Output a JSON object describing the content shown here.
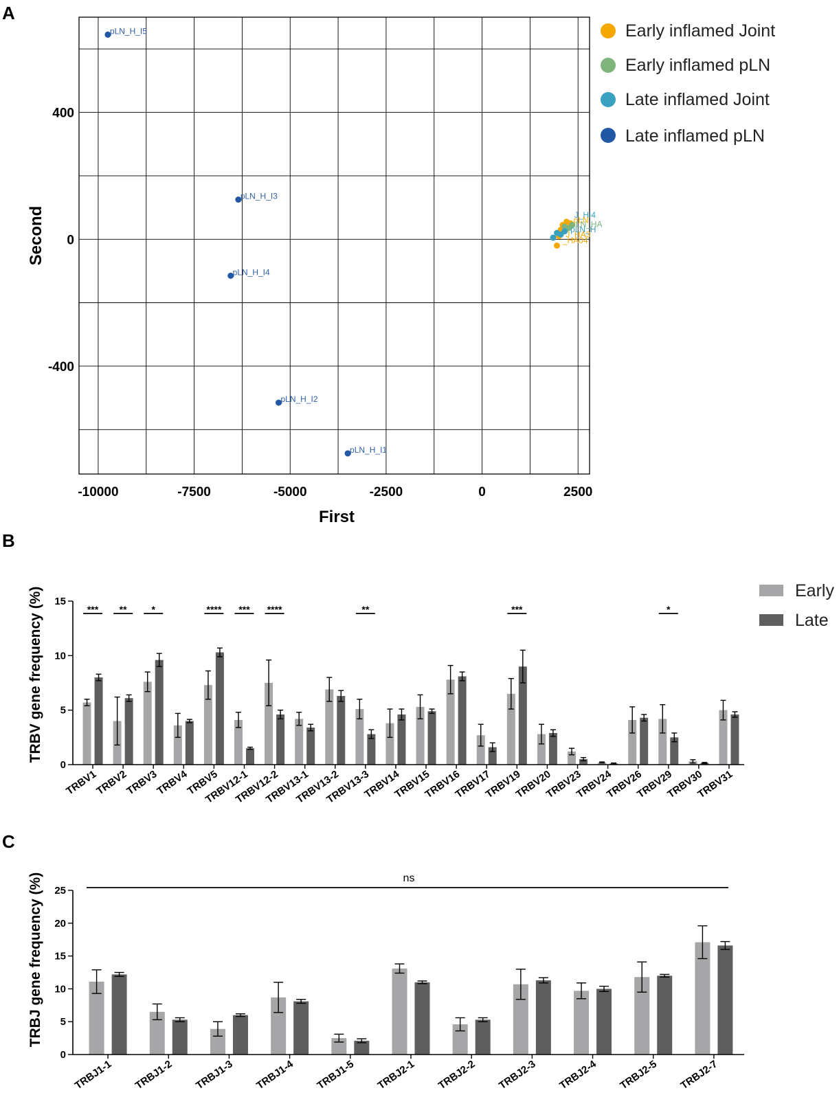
{
  "colors": {
    "early_joint": "#f5a800",
    "early_pln": "#7fb57d",
    "late_joint": "#3aa0c0",
    "late_pln": "#2257a3",
    "early_bar": "#a6a6a8",
    "late_bar": "#5e5e5e"
  },
  "chart_data": [
    {
      "panel": "A",
      "type": "scatter",
      "xlabel": "First",
      "ylabel": "Second",
      "xlim": [
        -10500,
        2800
      ],
      "ylim": [
        -740,
        700
      ],
      "xticks": [
        -10000,
        -7500,
        -5000,
        -2500,
        0,
        2500
      ],
      "xtick_labels": [
        "-10000",
        "-7500",
        "-5000",
        "-2500",
        "0",
        "2500"
      ],
      "yticks": [
        400,
        0,
        -400
      ],
      "ytick_labels": [
        "400",
        "0",
        "-400"
      ],
      "grid": true,
      "legend_position": "right",
      "legend": [
        {
          "name": "Early inflamed Joint",
          "color_key": "early_joint"
        },
        {
          "name": "Early inflamed pLN",
          "color_key": "early_pln"
        },
        {
          "name": "Late inflamed Joint",
          "color_key": "late_joint"
        },
        {
          "name": "Late inflamed pLN",
          "color_key": "late_pln"
        }
      ],
      "points": [
        {
          "label": "pLN_H_I5",
          "x": -9750,
          "y": 645,
          "group": "late_pln"
        },
        {
          "label": "pLN_H_I3",
          "x": -6350,
          "y": 125,
          "group": "late_pln"
        },
        {
          "label": "pLN_H_I4",
          "x": -6550,
          "y": -115,
          "group": "late_pln"
        },
        {
          "label": "pLN_H_I2",
          "x": -5300,
          "y": -515,
          "group": "late_pln"
        },
        {
          "label": "pLN_H_I1",
          "x": -3500,
          "y": -675,
          "group": "late_pln"
        }
      ],
      "cluster_points": [
        {
          "x": 1950,
          "y": -20,
          "group": "early_joint"
        },
        {
          "x": 2000,
          "y": 10,
          "group": "early_joint"
        },
        {
          "x": 2050,
          "y": 30,
          "group": "early_joint"
        },
        {
          "x": 2100,
          "y": 45,
          "group": "early_joint"
        },
        {
          "x": 2200,
          "y": 55,
          "group": "early_joint"
        },
        {
          "x": 2300,
          "y": 50,
          "group": "early_joint"
        },
        {
          "x": 2150,
          "y": 40,
          "group": "early_pln"
        },
        {
          "x": 2250,
          "y": 35,
          "group": "early_pln"
        },
        {
          "x": 2350,
          "y": 45,
          "group": "early_pln"
        },
        {
          "x": 1850,
          "y": 5,
          "group": "late_joint"
        },
        {
          "x": 1950,
          "y": 20,
          "group": "late_joint"
        },
        {
          "x": 2050,
          "y": 15,
          "group": "late_joint"
        },
        {
          "x": 2150,
          "y": 25,
          "group": "late_joint"
        }
      ],
      "cluster_labels": [
        {
          "text": "J_HI4",
          "x": 2400,
          "y": 68,
          "group": "late_joint"
        },
        {
          "text": "pLN",
          "x": 2380,
          "y": 52,
          "group": "early_joint"
        },
        {
          "text": "pLN_HA",
          "x": 2320,
          "y": 38,
          "group": "early_pln"
        },
        {
          "text": "pLN_H",
          "x": 2300,
          "y": 22,
          "group": "late_joint"
        },
        {
          "text": "J_HA3",
          "x": 2180,
          "y": 6,
          "group": "early_joint"
        },
        {
          "text": "_HA04",
          "x": 2100,
          "y": -12,
          "group": "early_joint"
        }
      ]
    },
    {
      "panel": "B",
      "type": "bar",
      "ylabel": "TRBV gene frequency (%)",
      "ylim": [
        0,
        15
      ],
      "yticks": [
        0,
        5,
        10,
        15
      ],
      "legend_position": "top-right",
      "categories": [
        "TRBV1",
        "TRBV2",
        "TRBV3",
        "TRBV4",
        "TRBV5",
        "TRBV12-1",
        "TRBV12-2",
        "TRBV13-1",
        "TRBV13-2",
        "TRBV13-3",
        "TRBV14",
        "TRBV15",
        "TRBV16",
        "TRBV17",
        "TRBV19",
        "TRBV20",
        "TRBV23",
        "TRBV24",
        "TRBV26",
        "TRBV29",
        "TRBV30",
        "TRBV31"
      ],
      "series": [
        {
          "name": "Early",
          "color_key": "early_bar",
          "values": [
            5.7,
            4.0,
            7.6,
            3.6,
            7.3,
            4.1,
            7.5,
            4.2,
            6.9,
            5.1,
            3.8,
            5.3,
            7.8,
            2.7,
            6.5,
            2.8,
            1.2,
            0.2,
            4.1,
            4.2,
            0.3,
            5.0
          ],
          "errors": [
            0.3,
            2.2,
            0.9,
            1.1,
            1.3,
            0.7,
            2.1,
            0.6,
            1.1,
            0.9,
            1.3,
            1.1,
            1.3,
            1.0,
            1.4,
            0.9,
            0.3,
            0.05,
            1.2,
            1.3,
            0.15,
            0.9
          ]
        },
        {
          "name": "Late",
          "color_key": "late_bar",
          "values": [
            8.0,
            6.1,
            9.6,
            4.0,
            10.3,
            1.5,
            4.6,
            3.4,
            6.3,
            2.8,
            4.6,
            4.9,
            8.1,
            1.6,
            9.0,
            2.9,
            0.5,
            0.1,
            4.3,
            2.5,
            0.15,
            4.6
          ],
          "errors": [
            0.3,
            0.3,
            0.6,
            0.15,
            0.4,
            0.1,
            0.4,
            0.3,
            0.5,
            0.4,
            0.5,
            0.2,
            0.4,
            0.4,
            1.5,
            0.3,
            0.15,
            0.05,
            0.3,
            0.4,
            0.05,
            0.25
          ]
        }
      ],
      "significance": [
        {
          "category": "TRBV1",
          "label": "***"
        },
        {
          "category": "TRBV2",
          "label": "**"
        },
        {
          "category": "TRBV3",
          "label": "*"
        },
        {
          "category": "TRBV5",
          "label": "****"
        },
        {
          "category": "TRBV12-1",
          "label": "***"
        },
        {
          "category": "TRBV12-2",
          "label": "****"
        },
        {
          "category": "TRBV13-3",
          "label": "**"
        },
        {
          "category": "TRBV19",
          "label": "***"
        },
        {
          "category": "TRBV29",
          "label": "*"
        }
      ]
    },
    {
      "panel": "C",
      "type": "bar",
      "ylabel": "TRBJ gene frequency (%)",
      "ylim": [
        0,
        25
      ],
      "yticks": [
        0,
        5,
        10,
        15,
        20,
        25
      ],
      "annotation": "ns",
      "categories": [
        "TRBJ1-1",
        "TRBJ1-2",
        "TRBJ1-3",
        "TRBJ1-4",
        "TRBJ1-5",
        "TRBJ2-1",
        "TRBJ2-2",
        "TRBJ2-3",
        "TRBJ2-4",
        "TRBJ2-5",
        "TRBJ2-7"
      ],
      "series": [
        {
          "name": "Early",
          "color_key": "early_bar",
          "values": [
            11.1,
            6.5,
            3.9,
            8.7,
            2.5,
            13.1,
            4.6,
            10.7,
            9.7,
            11.8,
            17.1
          ],
          "errors": [
            1.8,
            1.2,
            1.1,
            2.3,
            0.6,
            0.7,
            1.0,
            2.3,
            1.2,
            2.3,
            2.5
          ]
        },
        {
          "name": "Late",
          "color_key": "late_bar",
          "values": [
            12.2,
            5.3,
            6.0,
            8.1,
            2.1,
            11.0,
            5.3,
            11.3,
            10.0,
            12.0,
            16.6
          ],
          "errors": [
            0.3,
            0.3,
            0.2,
            0.3,
            0.3,
            0.2,
            0.3,
            0.4,
            0.4,
            0.2,
            0.6
          ]
        }
      ]
    }
  ],
  "panel_letters": [
    "A",
    "B",
    "C"
  ]
}
